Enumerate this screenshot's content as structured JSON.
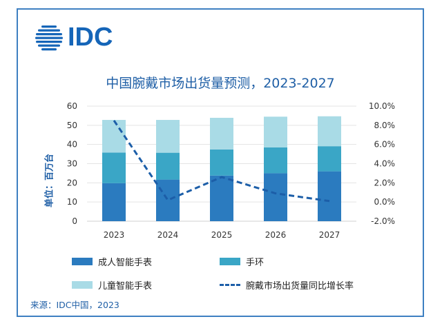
{
  "brand": {
    "logo_text": "IDC"
  },
  "colors": {
    "adult": "#2b7bbf",
    "band": "#3aa6c6",
    "kids": "#a9dbe6",
    "growth": "#1c5ea8",
    "title": "#1f5fa6"
  },
  "chart_data": {
    "type": "bar",
    "stacked": true,
    "title": "中国腕戴市场出货量预测，2023-2027",
    "ylabel": "单位：百万台",
    "categories": [
      "2023",
      "2024",
      "2025",
      "2026",
      "2027"
    ],
    "ylim": [
      0,
      60
    ],
    "y_ticks": [
      "0",
      "10",
      "20",
      "30",
      "40",
      "50",
      "60"
    ],
    "y2lim": [
      -2,
      10
    ],
    "y2_ticks": [
      "-2.0%",
      "0.0%",
      "2.0%",
      "4.0%",
      "6.0%",
      "8.0%",
      "10.0%"
    ],
    "series": [
      {
        "name": "成人智能手表",
        "values": [
          19.8,
          21.7,
          23.8,
          25.0,
          26.0
        ]
      },
      {
        "name": "手环",
        "values": [
          16.0,
          14.0,
          13.6,
          13.5,
          13.1
        ]
      },
      {
        "name": "儿童智能手表",
        "values": [
          17.0,
          17.1,
          16.5,
          16.0,
          15.6
        ]
      }
    ],
    "line_series": {
      "name": "腕戴市场出货量同比增长率",
      "values": [
        8.5,
        0.2,
        2.6,
        0.9,
        0.1
      ],
      "axis": "right"
    }
  },
  "source": "来源：IDC中国，2023"
}
